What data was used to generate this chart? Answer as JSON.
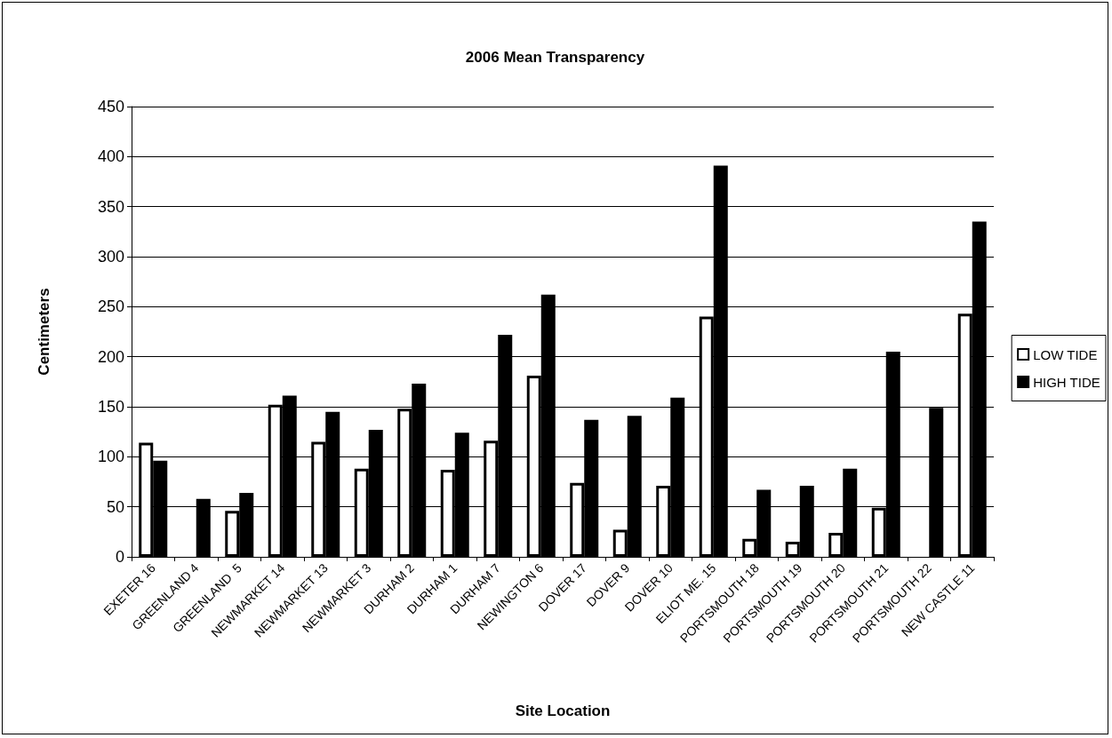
{
  "chart_data": {
    "type": "bar",
    "title": "2006 Mean Transparency",
    "xlabel": "Site Location",
    "ylabel": "Centimeters",
    "categories": [
      "EXETER 16",
      "GREENLAND 4",
      "GREENLAND  5",
      "NEWMARKET 14",
      "NEWMARKET 13",
      "NEWMARKET 3",
      "DURHAM 2",
      "DURHAM 1",
      "DURHAM 7",
      "NEWINGTON 6",
      "DOVER 17",
      "DOVER 9",
      "DOVER 10",
      "ELIOT ME. 15",
      "PORTSMOUTH 18",
      "PORTSMOUTH 19",
      "PORTSMOUTH 20",
      "PORTSMOUTH 21",
      "PORTSMOUTH 22",
      "NEW CASTLE 11"
    ],
    "series": [
      {
        "name": "LOW TIDE",
        "color": "#ffffff",
        "values": [
          114,
          null,
          46,
          152,
          115,
          88,
          148,
          87,
          116,
          181,
          74,
          27,
          71,
          240,
          18,
          15,
          24,
          49,
          null,
          243
        ]
      },
      {
        "name": "HIGH TIDE",
        "color": "#000000",
        "values": [
          96,
          58,
          64,
          161,
          145,
          127,
          173,
          124,
          222,
          262,
          137,
          141,
          159,
          391,
          67,
          71,
          88,
          205,
          149,
          335
        ]
      }
    ],
    "ylim": [
      0,
      450
    ],
    "yticks": [
      0,
      50,
      100,
      150,
      200,
      250,
      300,
      350,
      400,
      450
    ],
    "grid": "y",
    "legend": "right"
  }
}
